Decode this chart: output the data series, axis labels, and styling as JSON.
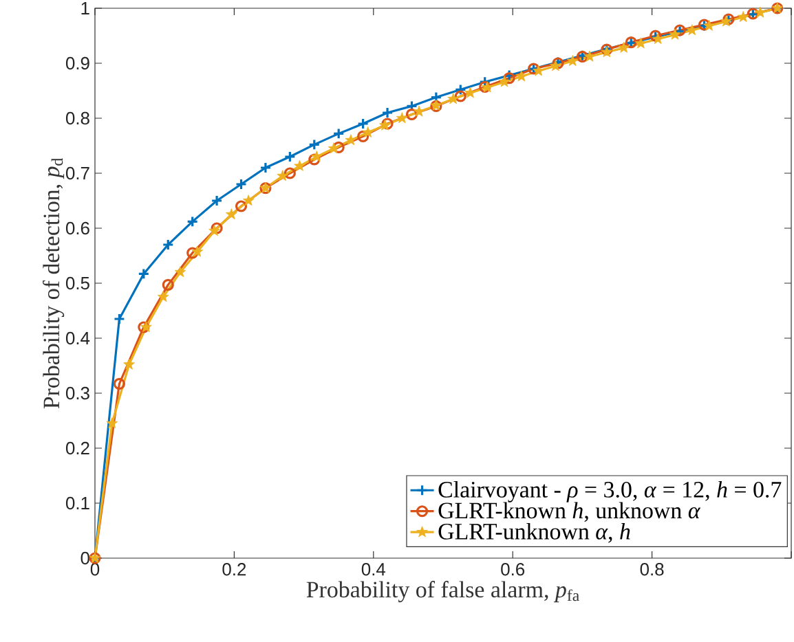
{
  "chart_data": {
    "type": "line",
    "xlabel": "Probability of false alarm, *p*$_{fa}$",
    "ylabel": "Probability of detection, *p*$_{d}$",
    "xlim": [
      0,
      1
    ],
    "ylim": [
      0,
      1
    ],
    "xticks": [
      0,
      0.2,
      0.4,
      0.6,
      0.8,
      {
        "value": 1,
        "label": null
      }
    ],
    "yticks": [
      0,
      0.1,
      0.2,
      0.3,
      0.4,
      0.5,
      0.6,
      0.7,
      0.8,
      0.9,
      1
    ],
    "legend": "bottom right",
    "line_style": "solid",
    "series": [
      {
        "name": "Clairvoyant - *ρ* = 3.0, *α* = 12, *h* = 0.7",
        "color": "#0072bd",
        "marker": "cross",
        "x": [
          0,
          0.035,
          0.07,
          0.105,
          0.14,
          0.175,
          0.21,
          0.245,
          0.28,
          0.315,
          0.35,
          0.385,
          0.42,
          0.455,
          0.49,
          0.525,
          0.56,
          0.595,
          0.63,
          0.665,
          0.7,
          0.735,
          0.77,
          0.805,
          0.84,
          0.875,
          0.91,
          0.945,
          0.98
        ],
        "values": [
          0,
          0.435,
          0.517,
          0.57,
          0.612,
          0.65,
          0.68,
          0.71,
          0.73,
          0.752,
          0.772,
          0.79,
          0.81,
          0.822,
          0.838,
          0.852,
          0.866,
          0.878,
          0.89,
          0.902,
          0.914,
          0.926,
          0.937,
          0.948,
          0.958,
          0.968,
          0.978,
          0.989,
          1.0
        ]
      },
      {
        "name": "GLRT-known *h*, unknown *α*",
        "color": "#d95319",
        "marker": "circle",
        "x": [
          0,
          0.035,
          0.07,
          0.105,
          0.14,
          0.175,
          0.21,
          0.245,
          0.28,
          0.315,
          0.35,
          0.385,
          0.42,
          0.455,
          0.49,
          0.525,
          0.56,
          0.595,
          0.63,
          0.665,
          0.7,
          0.735,
          0.77,
          0.805,
          0.84,
          0.875,
          0.91,
          0.945,
          0.98
        ],
        "values": [
          0,
          0.317,
          0.42,
          0.497,
          0.555,
          0.6,
          0.64,
          0.673,
          0.7,
          0.725,
          0.747,
          0.767,
          0.79,
          0.807,
          0.822,
          0.84,
          0.857,
          0.873,
          0.89,
          0.9,
          0.912,
          0.925,
          0.938,
          0.95,
          0.96,
          0.97,
          0.98,
          0.99,
          1.0
        ]
      },
      {
        "name": "GLRT-unknown *α*, *h*",
        "color": "#edb120",
        "marker": "star",
        "x": [
          0,
          0.0245,
          0.049,
          0.0735,
          0.098,
          0.1225,
          0.147,
          0.1715,
          0.196,
          0.2205,
          0.245,
          0.2695,
          0.294,
          0.3185,
          0.343,
          0.3675,
          0.392,
          0.4165,
          0.441,
          0.4655,
          0.49,
          0.5145,
          0.539,
          0.5635,
          0.588,
          0.6125,
          0.637,
          0.6615,
          0.686,
          0.7105,
          0.735,
          0.7595,
          0.784,
          0.8085,
          0.833,
          0.8575,
          0.882,
          0.9065,
          0.931,
          0.9555,
          0.98
        ],
        "values": [
          0,
          0.245,
          0.352,
          0.42,
          0.475,
          0.52,
          0.557,
          0.595,
          0.625,
          0.65,
          0.673,
          0.695,
          0.713,
          0.73,
          0.745,
          0.76,
          0.774,
          0.787,
          0.8,
          0.812,
          0.823,
          0.835,
          0.846,
          0.856,
          0.866,
          0.876,
          0.886,
          0.895,
          0.904,
          0.912,
          0.92,
          0.928,
          0.936,
          0.944,
          0.952,
          0.96,
          0.968,
          0.976,
          0.984,
          0.992,
          1.0
        ]
      }
    ]
  }
}
